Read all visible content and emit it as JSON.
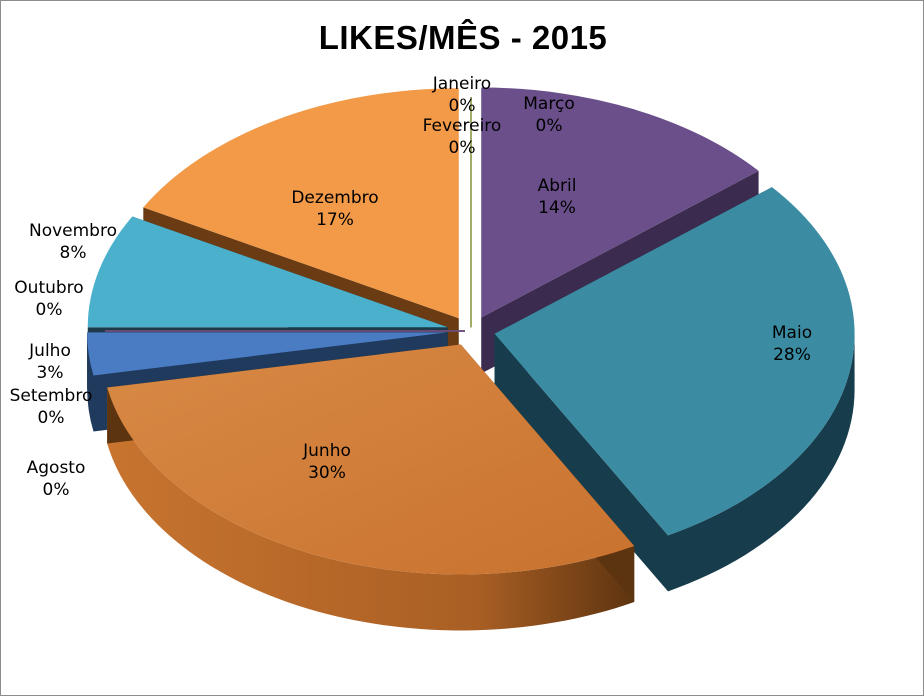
{
  "chart_data": {
    "type": "pie",
    "title": "LIKES/MÊS - 2015",
    "slices": [
      {
        "name": "Janeiro",
        "label": "0%",
        "value": 0,
        "color": "#4f81bd"
      },
      {
        "name": "Fevereiro",
        "label": "0%",
        "value": 0,
        "color": "#c0504d"
      },
      {
        "name": "Março",
        "label": "0%",
        "value": 0,
        "color": "#9bbb59"
      },
      {
        "name": "Abril",
        "label": "14%",
        "value": 14,
        "color": "#6a4f8a"
      },
      {
        "name": "Maio",
        "label": "28%",
        "value": 28,
        "color": "#3b8ca3"
      },
      {
        "name": "Junho",
        "label": "30%",
        "value": 30,
        "color": "#d07a35"
      },
      {
        "name": "Julho",
        "label": "3%",
        "value": 3,
        "color": "#4a7cc4"
      },
      {
        "name": "Agosto",
        "label": "0%",
        "value": 0,
        "color": "#3c6fb0"
      },
      {
        "name": "Setembro",
        "label": "0%",
        "value": 0,
        "color": "#8e3f3c"
      },
      {
        "name": "Outubro",
        "label": "0%",
        "value": 0,
        "color": "#6b4a7e"
      },
      {
        "name": "Novembro",
        "label": "8%",
        "value": 8,
        "color": "#4ab0cc"
      },
      {
        "name": "Dezembro",
        "label": "17%",
        "value": 17,
        "color": "#f29a48"
      }
    ],
    "legend": "none",
    "data_labels": "category-and-percent",
    "style": "3d-exploded"
  }
}
